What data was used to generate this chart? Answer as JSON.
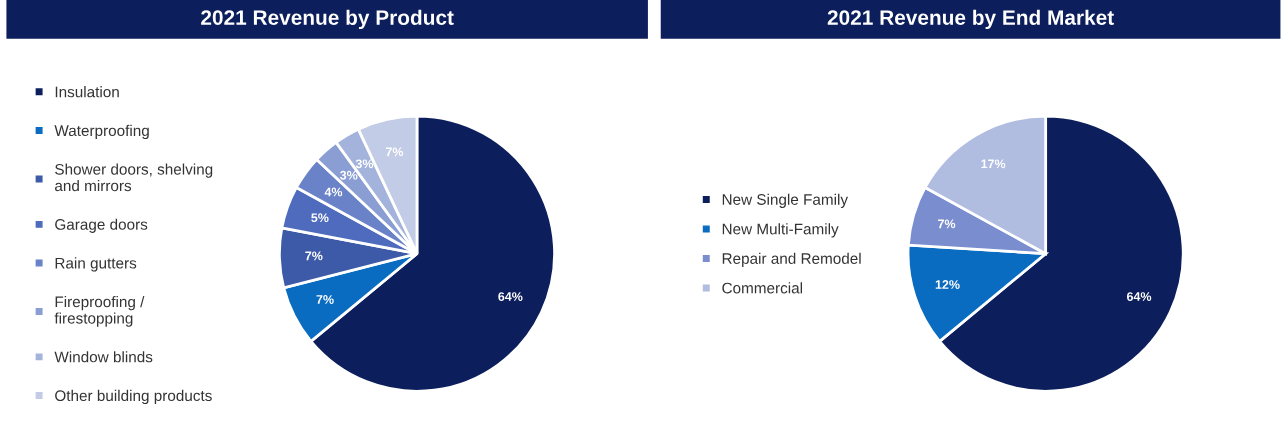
{
  "chart_data": [
    {
      "type": "pie",
      "title": "2021 Revenue by Product",
      "legend": "left",
      "value_labels": [
        "64%",
        "7%",
        "7%",
        "5%",
        "4%",
        "3%",
        "3%",
        "7%"
      ],
      "categories": [
        "Insulation",
        "Waterproofing",
        "Shower doors, shelving\nand mirrors",
        "Garage doors",
        "Rain gutters",
        "Fireproofing /\nfirestopping",
        "Window blinds",
        "Other building products"
      ],
      "values": [
        64,
        7,
        7,
        5,
        4,
        3,
        3,
        7
      ],
      "colors": [
        "#0c1f5c",
        "#0a6cc0",
        "#3d5aa8",
        "#4e6bbd",
        "#6a82c8",
        "#8a9ed4",
        "#a3b3dc",
        "#c3cce6"
      ]
    },
    {
      "type": "pie",
      "title": "2021 Revenue by End Market",
      "legend": "left",
      "categories": [
        "New Single Family",
        "New Multi-Family",
        "Repair and Remodel",
        "Commercial"
      ],
      "values": [
        64,
        12,
        7,
        17
      ],
      "value_labels": [
        "64%",
        "12%",
        "7%",
        "17%"
      ],
      "colors": [
        "#0c1f5c",
        "#0a6cc0",
        "#7a8ecf",
        "#b0bce0"
      ]
    }
  ]
}
